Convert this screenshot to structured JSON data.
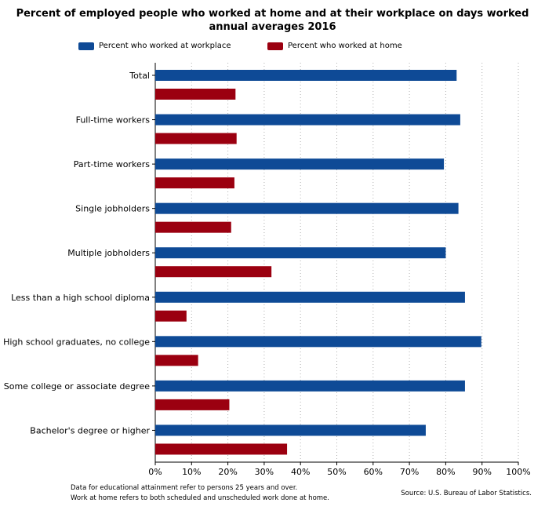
{
  "chart_data": {
    "type": "bar",
    "orientation": "horizontal",
    "title_lines": [
      "Percent of employed people who worked at home and at their workplace on days worked",
      "annual averages  2016"
    ],
    "categories": [
      "Total",
      "Full-time workers",
      "Part-time workers",
      "Single jobholders",
      "Multiple jobholders",
      "Less than a high school diploma",
      "High school graduates, no college",
      "Some college or associate degree",
      "Bachelor's degree or higher"
    ],
    "series": [
      {
        "name": "Percent who worked at workplace",
        "color": "#0e4a96",
        "values": [
          83,
          84,
          79.5,
          83.5,
          80,
          85.3,
          89.8,
          85.3,
          74.5
        ]
      },
      {
        "name": "Percent who worked at home",
        "color": "#9b0010",
        "values": [
          22.1,
          22.4,
          21.8,
          20.9,
          32,
          8.6,
          11.8,
          20.4,
          36.3
        ]
      }
    ],
    "xlim": [
      0,
      100
    ],
    "x_ticks": [
      "0%",
      "10%",
      "20%",
      "30%",
      "40%",
      "50%",
      "60%",
      "70%",
      "80%",
      "90%",
      "100%"
    ],
    "grid": "vertical-dotted",
    "legend_position": "top"
  },
  "footnotes": [
    "Data for educational attainment refer to persons 25 years and over.",
    "Work at home refers to both scheduled and unscheduled work done at home."
  ],
  "source": "Source: U.S. Bureau of Labor Statistics."
}
